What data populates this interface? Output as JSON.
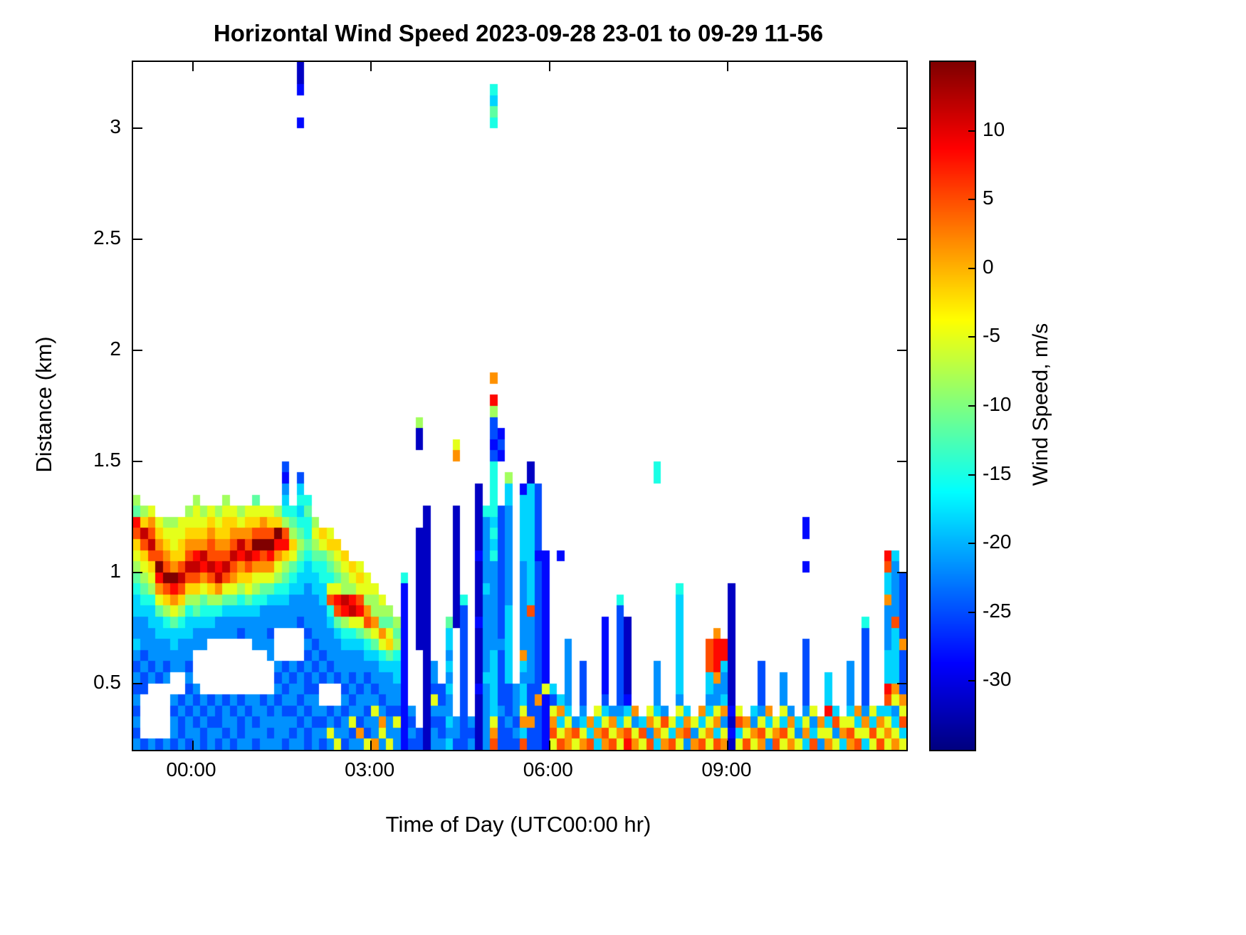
{
  "figure": {
    "title": "Horizontal Wind Speed 2023-09-28 23-01 to 09-29 11-56",
    "xlabel": "Time of Day (UTC00:00 hr)",
    "ylabel": "Distance (km)",
    "colorbar_label": "Wind Speed, m/s"
  },
  "chart_data": {
    "type": "heatmap",
    "title": "Horizontal Wind Speed 2023-09-28 23-01 to 09-29 11-56",
    "xlabel": "Time of Day (UTC00:00 hr)",
    "ylabel": "Distance (km)",
    "x_axis": {
      "unit": "hours (UTC, 24 = midnight 09-29)",
      "range": [
        23.0,
        36.0
      ],
      "ticks": [
        {
          "value": 24,
          "label": "00:00"
        },
        {
          "value": 27,
          "label": "03:00"
        },
        {
          "value": 30,
          "label": "06:00"
        },
        {
          "value": 33,
          "label": "09:00"
        }
      ]
    },
    "y_axis": {
      "unit": "km",
      "range": [
        0.2,
        3.3
      ],
      "ticks": [
        {
          "value": 0.5,
          "label": "0.5"
        },
        {
          "value": 1,
          "label": "1"
        },
        {
          "value": 1.5,
          "label": "1.5"
        },
        {
          "value": 2,
          "label": "2"
        },
        {
          "value": 2.5,
          "label": "2.5"
        },
        {
          "value": 3,
          "label": "3"
        }
      ]
    },
    "colorbar": {
      "label": "Wind Speed, m/s",
      "unit": "m/s",
      "min": -35,
      "max": 15,
      "ticks": [
        10,
        5,
        0,
        -5,
        -10,
        -15,
        -20,
        -25,
        -30
      ],
      "colormap": "jet"
    },
    "grid": {
      "cols": 104,
      "rows": 62,
      "col0_time_hours": 23.0,
      "col_width_hours": 0.125,
      "row0_top_km": 3.3,
      "row_height_km": 0.05,
      "levels_chars": "0123456789abcdef",
      "level_values_mps": [
        -35,
        -31.7,
        -28.3,
        -25,
        -21.7,
        -18.3,
        -15,
        -11.7,
        -8.3,
        -5,
        -1.7,
        1.7,
        5,
        8.3,
        11.7,
        15
      ],
      "encoding": "each column string = semicolon-separated runs 'rowStart-rowEnd:levelChar' (row 0 = top, 3.3 km); missing rows = no data (white)",
      "columns": [
        "39:8;40:7;41:d;42:c;43:a;44:9;45:8;46:7;47:6;48-49:5;50-51:4;52:5;53:4;54:3;55:4;56:3;57:4;58:3;59:4;60:3;61:4",
        "40:8;41:a;42:e;43:c;44:a;45:9;46:8;47:7;48:6;49:5;50-52:4;53:3;54:4;55:3;56:3;61:3",
        "40:9;41:b;42:c;43:e;44:c;45:a;46:9;47:8;48:6;49-50:5;51-53:4;54:3;55:4;61:4",
        "41:9;42:a;43:b;44:c;45:f;46:d;47:b;48:9;49:7;50-51:5;52-54:4;55:3;61:3",
        "41:8;42:9;43:a;44:b;45:c;46:f;47:c;48:a;49:8;50:6;51:5;52-53:4;54:3;55:4;61:4",
        "41:8;42-43:9;44:a;45:b;46:f;47:d;48:b;49:9;50:7;51-52:5;53-54:4;57:4;58:3;59-60:4;61:3",
        "41-42:9;43-44:a;45:c;46:e;47:c;48:a;49:8;50:6;51:5;52-54:4;57:3;58:4;59-60:3;61:4",
        "40:8;41:9;42:a;43:b;44:c;45:e;46:c;47:a;48:8;49:6;50-51:5;52-53:4;54:3;55:4;56:3;57:4;58:3;59:4;60:4;61:3",
        "39:8;40-41:9;42:a;43:b;44:d;45:e;46:c;47:a;48:8;49:7;50:5;51-52:4;56:4;57:3;58:4;59:3;60-61:4",
        "40:8;41:9;42:a;43:b;44:e;45:d;46:b;47:9;48:7;49:6;50:5;51-52:4;57:4;58:3;59:4;60-61:3",
        "40:9;41:a;42:b;43-44:c;45:e;46:c;47:a;48:8;49:6;50:5;51:4;57:3;58:4;59:3;60-61:4",
        "40:8;41:9;42:a;43:b;44:c;45:d;46:e;47:b;48:8;49:6;50-51:4;57:4;58-59:3;60:4;61:3",
        "39:8;40:9;41-42:a;43:b;44:c;45:e;46:c;47:9;48:7;49:5;50-51:4;57:3;58-59:4;60:3;61:4",
        "40:9;41:a;42:b;43:c;44:e;45:c;46:b;47:9;48:7;49:5;50-51:4;57:4;58:3;59-60:4;61:3",
        "40:8;41:9;42:b;43:e;44:d;45:b;46:a;47:8;48:6;49:5;50:4;51:3;57:3;58:4;59-60:3;61:4",
        "40:9;41:a;42:b;43:c;44:e;45:c;46:a;47:9;48:7;49:5;50-51:4;57:4;58:3;59-61:4",
        "39:7;40:9;41:a;42:c;43:f;44:d;45:b;46:9;47:8;48:6;49:5;50-52:4;57:4;58:4;59:3;60:4;61:3",
        "40:9;41:b;42:c;43:f;44:c;45:b;46:9;47:7;48:6;49-52:4;57:3;58:4;59-61:4",
        "40:9;41:a;42:c;43:f;44:d;45:b;46:9;47:7;48:5;49-50:4;51:3;52-53:4;57:4;58:3;59:4;60:3;61:4",
        "40:8;41:a;42:f;43:d;44:b;45:9;46:8;47:6;48:5;49-50:4;54:4;55:3;56:4;57:3;58:4;59-60:4;61:4",
        "36:3;37:2;38:4;39:5;40:6;41:8;42:c;43:d;44:a;45:8;46:7;47:6;48:5;49-50:4;54:3;55:4;56:3;57:4;58:3;59:4;60:4;61:3",
        "40:6;41:7;42:8;43:a;44:9;45:7;46:6;47:5;48-50:4;54:4;55:3;56:4;57:4;58:3;59:4;60:3;61:4",
        "0-1:1;2:2;5:2;37:3;38:5;39:6;40:5;41:6;42:7;43:8;44:7;45:6;46-47:5;48-49:4;50:3;54:3;55:4;56:4;57:3;58:4;59:3;60-61:4",
        "39:6;40:7;41-42:6;43:7;44:6;45-46:5;47-49:4;50:4;51:3;52:4;53:3;54:4;55:3;56:3;57:4;58:3;59:4;60:3;61:3",
        "41:8;42:9;43:8;44:7;45:6;46-47:5;48-51:4;52:3;53:4;54:3;55:4;56:3;57-58:4;59:3;60-61:4",
        "42:a;43:9;44:7;45-46:6;47-48:5;49-52:4;53:3;54:4;55:3;58:4;59:3;60:4;61:3",
        "42:9;43:a;44:8;45:7;46:6;47:9;48:c;49:6;50:5;51-53:4;54:3;55:4;58:3;59:4;60:9;61:4",
        "43:a;44:9;45:8;46:7;47:9;48:d;49:c;50:7;51:5;52-54:4;55:3;58:4;59:3;60:4;61:9",
        "44:a;45:9;46-47:8;48:e;49:d;50:8;51:6;52:5;53-55:4;56:3;57:4;58:3;59:4;60:4;61:3",
        "45:a;46:9;47:8;48:d;49:e;50:9;51:6;52:5;53-54:4;55:3;56:4;57:3;58:4;59:9;60:3;61:4",
        "45:9;46:a;47:9;48:c;49:d;50:9;51:7;52:5;53-55:4;56:3;57:4;58:4;59:3;60:b;61:4",
        "46-47:9;48:8;49:b;50:c;51:8;52:6;53:5;54:4;55:3;56-57:4;58:3;59:4;60:3;61:9",
        "47:9;48-49:8;50:b;51:9;52:7;53:5;54-55:4;56:3;57:4;58:9;59:4;60:4;61:b",
        "48:9;49:8;50:7;51:b;52:9;53:6;54:5;55-56:4;57:3;58:4;59:b;60:9;61:4",
        "49:8;50:7;51:9;52:a;53:7;54:5;55-57:4;58:3;59:4;60:4;61:9",
        "50:8;51:7;52:8;53:6;54-55:5;56-57:4;58:3;59:9;60-61:4",
        "46:6;47-61:2",
        "58:4;59:3;60:4;61:3",
        "32:8;33-34:1;42-52:1;60-61:3",
        "40-61:1",
        "54-55:4;56:3;57:9;58:4;59:3;60-61:4",
        "56-57:3;58:4;59:3;60:3;61:4",
        "50:7;51-52:5;53:4;54:5;55:4;56:5;57:4;58:4;59:5;60:4;61:5",
        "34:9;35:b;40-50:1;59-60:4;61:3",
        "48:6;49-61:3",
        "59:4;60:3;61:4",
        "38-43:1;44:2;45-49:1;50:2;51-55:1;56:2;57-61:1",
        "40:6;41-46:4;47:5;48-54:4;55:5;56-61:4",
        "2:6;3:5;4:7;5:6;28:b;30:d;31:8;32-33:3;34:2;35:3;36-40:6;41:5;42:6;43:5;44:6;45-52:4;53-58:5;59:9;60:b;61:c",
        "33:2;34:3;35:2;40-51:3;52:4;53-57:3;58:4;59-61:3",
        "37:8;38-39:5;40-48:4;49-55:5;56-58:3;59:4;60-61:3",
        "56-58:4;59:3;60:4;61:3",
        "38:2;39-44:5;45-52:4;53:b;54:5;55:4;56-57:5;58:9;59:b;60:5;61:c",
        "36-37:1;38-48:5;49:c;50-55:4;56-58:3;59:b;60-61:3",
        "38-43:3;44:2;45-56:3;57:b;58-61:3",
        "44-55:2;56:9;57-61:2",
        "56:5;57:3;58:9;59:b;60:c;61:9",
        "44:2;57:5;58:b;59:5;60:9;61:c",
        "52-57:4;58:5;59:9;60:b;61:b",
        "59:4;60:c;61:9",
        "54-57:3;58:4;59:5;60:9;61:b",
        "59:b;60:5;61:c",
        "58:9;59:5;60:b;61:5",
        "50-56:2;57:3;58:5;59:9;60:c;61:b",
        "58:4;59:b;60:9;61:c",
        "48:6;49-57:3;58:4;59:5;60:b;61:9",
        "50-56:1;57:2;58:5;59:9;60:c;61:d",
        "58:b;59:4;60:9;61:b",
        "59:5;60:c;61:9",
        "58:9;59:b;60:4;61:c",
        "36-37:6;54-57:4;58:5;59:9;60:b;61:5",
        "58:4;59:c;60:9;61:b",
        "59:9;60:5;61:c",
        "47:6;48-56:5;57:4;58:9;59:5;60:b;61:9",
        "58:5;59:b;60:c;61:4",
        "59:9;60:4;61:b",
        "58:b;59:5;60:9;61:c",
        "52-54:c;55-56:5;57:4;58:5;59:9;60:b;61:9",
        "51:b;52-54:d;55:b;56-57:4;58:9;59:b;60:5;61:c",
        "52-53:d;54:5;55-56:4;57:5;58:b;59:4;60:9;61:b",
        "47-57:1;58:2;59:1;60:2;61:1",
        "58:9;59:c;60:5;61:9",
        "59:b;60:9;61:c",
        "58:5;59:4;60:b;61:9",
        "54-57:3;58:4;59:9;60:c;61:b",
        "58:b;59:5;60:9;61:4",
        "59:9;60:b;61:c",
        "55-57:4;58:9;59:5;60:c;61:9",
        "58:4;59:b;60:9;61:b",
        "59:5;60:4;61:9",
        "41-42:2;45:2;52-57:3;58:4;59:9;60:b;61:5",
        "58:9;59:4;60:5;61:c",
        "59:b;60:9;61:4",
        "55-57:5;58:d;59:5;60:9;61:b",
        "58:5;59:c;60:4;61:9",
        "59:9;60:b;61:5",
        "54-57:4;58:5;59:9;60:c;61:b",
        "58:b;59:5;60:9;61:c",
        "50:6;51-57:3;58:4;59:b;60:9;61:5",
        "58:9;59:5;60:c;61:9",
        "58:5;59:b;60:9;61:c",
        "44:d;45:c;46-47:5;48:b;49-52:4;53-55:5;56:d;57:c;58:5;59:9;60:b;61:9",
        "44:5;45-49:4;50:c;51-55:5;56:b;57:9;58:4;59:5;60:9;61:b",
        "46-51:3;52:b;53-56:3;57:b;58:9;59:c;60:5;61:9"
      ]
    }
  },
  "colors": {
    "axes": "#000000",
    "background": "#ffffff"
  }
}
